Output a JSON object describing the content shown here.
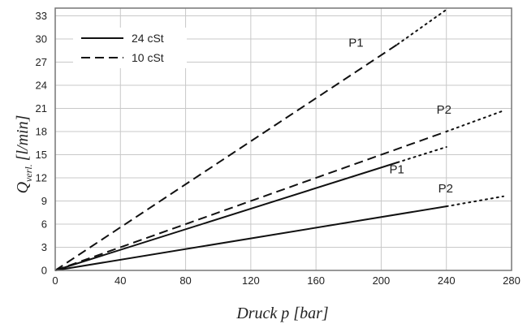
{
  "chart_data": {
    "type": "line",
    "xlabel": "Druck p [bar]",
    "ylabel": {
      "main": "Q",
      "sub": "verl.",
      "unit": "[l/min]"
    },
    "xlim": [
      0,
      280
    ],
    "ylim": [
      0,
      34
    ],
    "xticks": [
      "0",
      "40",
      "80",
      "120",
      "160",
      "200",
      "240",
      "280"
    ],
    "yticks": [
      "0",
      "3",
      "6",
      "9",
      "12",
      "15",
      "18",
      "21",
      "24",
      "27",
      "30",
      "33"
    ],
    "grid": true,
    "legend": {
      "placement": "top-left",
      "entries": [
        {
          "label": "24 cSt",
          "style": "solid"
        },
        {
          "label": "10 cSt",
          "style": "dashed"
        }
      ]
    },
    "series": [
      {
        "viscosity": "10 cSt",
        "pump": "P1",
        "style": "dashed",
        "points": [
          [
            0,
            0
          ],
          [
            210,
            29.3
          ]
        ],
        "extrapolated": [
          [
            210,
            29.3
          ],
          [
            240,
            33.8
          ]
        ]
      },
      {
        "viscosity": "10 cSt",
        "pump": "P2",
        "style": "dashed",
        "points": [
          [
            0,
            0
          ],
          [
            240,
            18.0
          ]
        ],
        "extrapolated": [
          [
            240,
            18.0
          ],
          [
            275,
            20.7
          ]
        ]
      },
      {
        "viscosity": "24 cSt",
        "pump": "P1",
        "style": "solid",
        "points": [
          [
            0,
            0
          ],
          [
            210,
            14.0
          ]
        ],
        "extrapolated": [
          [
            210,
            14.0
          ],
          [
            240,
            16.0
          ]
        ]
      },
      {
        "viscosity": "24 cSt",
        "pump": "P2",
        "style": "solid",
        "points": [
          [
            0,
            0
          ],
          [
            240,
            8.3
          ]
        ],
        "extrapolated": [
          [
            240,
            8.3
          ],
          [
            275,
            9.6
          ]
        ]
      }
    ],
    "annotations": [
      {
        "text": "P1",
        "x": 180,
        "y": 29.0
      },
      {
        "text": "P2",
        "x": 234,
        "y": 20.3
      },
      {
        "text": "P1",
        "x": 205,
        "y": 12.6
      },
      {
        "text": "P2",
        "x": 235,
        "y": 10.1
      }
    ]
  }
}
